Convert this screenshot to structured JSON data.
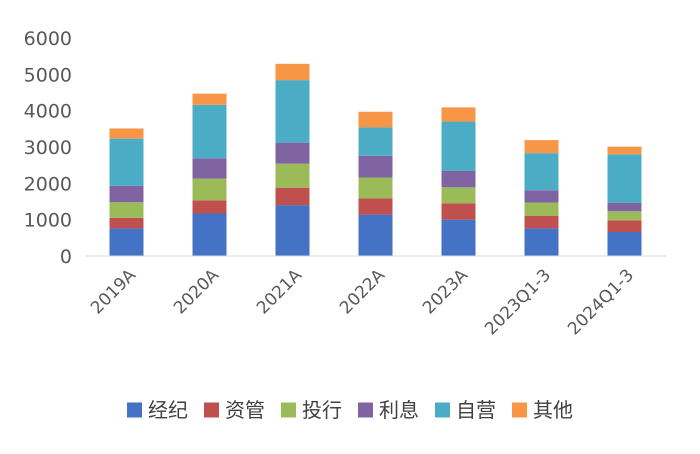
{
  "chart_data": {
    "type": "bar",
    "stacked": true,
    "categories": [
      "2019A",
      "2020A",
      "2021A",
      "2022A",
      "2023A",
      "2023Q1-3",
      "2024Q1-3"
    ],
    "series": [
      {
        "name": "经纪",
        "color": "#4472C4",
        "values": [
          760,
          1170,
          1400,
          1140,
          1000,
          760,
          660
        ]
      },
      {
        "name": "资管",
        "color": "#C0504D",
        "values": [
          290,
          360,
          480,
          450,
          450,
          350,
          320
        ]
      },
      {
        "name": "投行",
        "color": "#9BBB59",
        "values": [
          430,
          600,
          660,
          570,
          440,
          360,
          250
        ]
      },
      {
        "name": "利息",
        "color": "#8064A2",
        "values": [
          450,
          560,
          580,
          600,
          450,
          340,
          230
        ]
      },
      {
        "name": "自营",
        "color": "#4BACC6",
        "values": [
          1300,
          1470,
          1720,
          780,
          1360,
          1020,
          1340
        ]
      },
      {
        "name": "其他",
        "color": "#F79646",
        "values": [
          280,
          310,
          450,
          430,
          390,
          360,
          210
        ]
      }
    ],
    "yticks": [
      0,
      1000,
      2000,
      3000,
      4000,
      5000,
      6000
    ],
    "ylim": [
      0,
      6000
    ],
    "grid": false,
    "legend_position": "bottom"
  }
}
